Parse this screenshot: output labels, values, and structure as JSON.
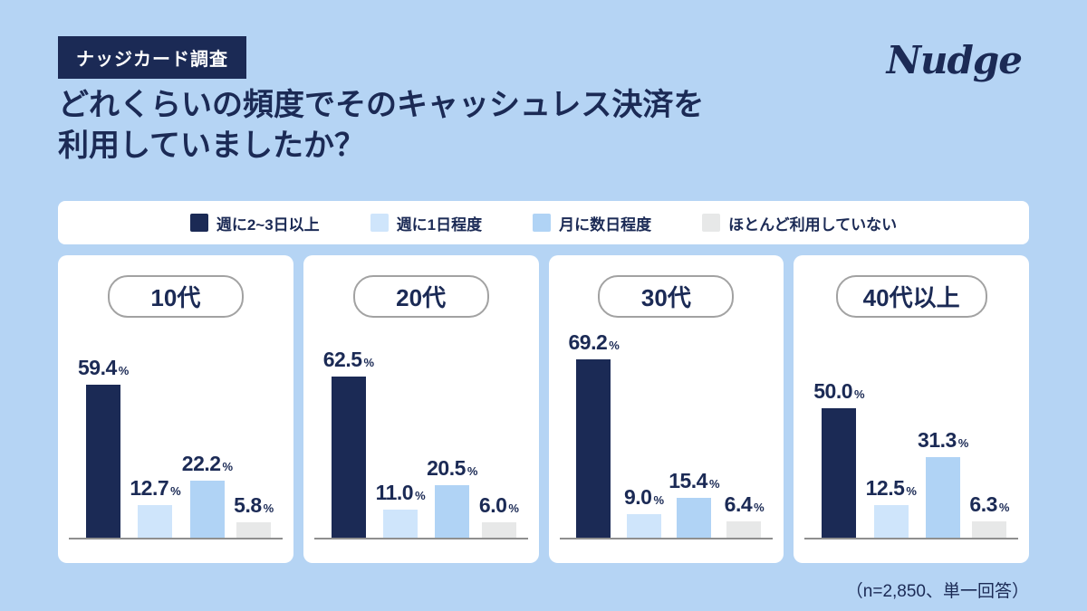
{
  "header": {
    "badge": "ナッジカード調査",
    "title_line1": "どれくらいの頻度でそのキャッシュレス決済を",
    "title_line2": "利用していましたか？",
    "logo_text": "Nudge"
  },
  "footnote": "（n=2,850、単一回答）",
  "colors": {
    "background": "#b5d4f4",
    "navy": "#1b2a55",
    "panel_white": "#ffffff",
    "axis_gray": "#8f8f8f"
  },
  "chart_data": {
    "type": "bar",
    "unit": "%",
    "series_labels": [
      "週に2~3日以上",
      "週に1日程度",
      "月に数日程度",
      "ほとんど利用していない"
    ],
    "series_colors": [
      "#1b2a55",
      "#cfe5fb",
      "#b0d3f5",
      "#e7e8e8"
    ],
    "categories": [
      "10代",
      "20代",
      "30代",
      "40代以上"
    ],
    "groups": [
      {
        "category": "10代",
        "values": [
          59.4,
          12.7,
          22.2,
          5.8
        ],
        "value_labels": [
          "59.4",
          "12.7",
          "22.2",
          "5.8"
        ]
      },
      {
        "category": "20代",
        "values": [
          62.5,
          11.0,
          20.5,
          6.0
        ],
        "value_labels": [
          "62.5",
          "11.0",
          "20.5",
          "6.0"
        ]
      },
      {
        "category": "30代",
        "values": [
          69.2,
          9.0,
          15.4,
          6.4
        ],
        "value_labels": [
          "69.2",
          "9.0",
          "15.4",
          "6.4"
        ]
      },
      {
        "category": "40代以上",
        "values": [
          50.0,
          12.5,
          31.3,
          6.3
        ],
        "value_labels": [
          "50.0",
          "12.5",
          "31.3",
          "6.3"
        ]
      }
    ],
    "ylim": [
      0,
      70
    ],
    "grid": false,
    "legend_position": "top"
  }
}
